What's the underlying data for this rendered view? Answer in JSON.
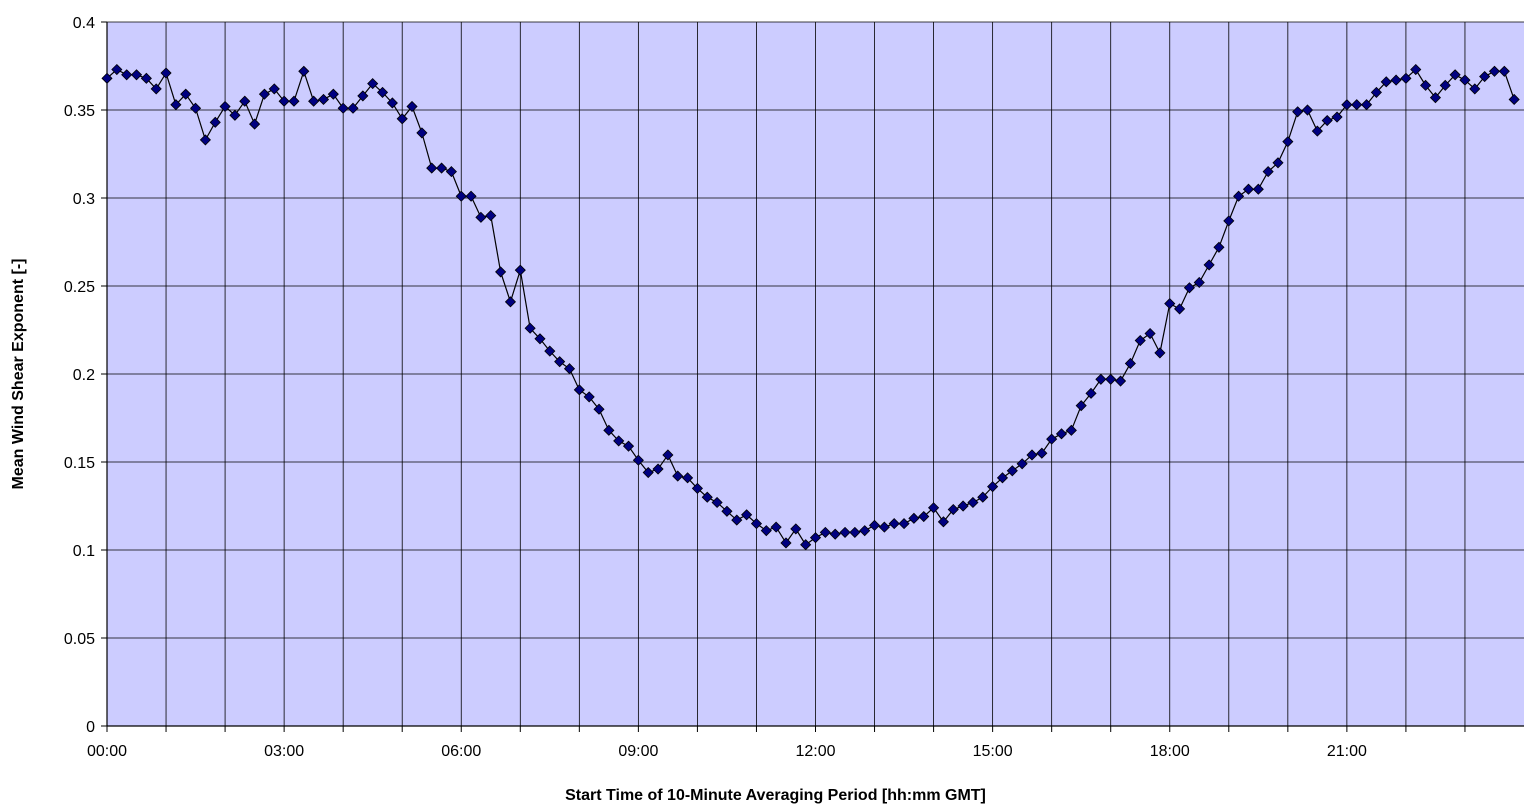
{
  "chart_data": {
    "type": "line",
    "xlabel": "Start Time of 10-Minute Averaging Period [hh:mm GMT]",
    "ylabel": "Mean Wind Shear Exponent [-]",
    "x_unit": "minutes since 00:00 GMT",
    "xlim": [
      0,
      1440
    ],
    "ylim": [
      0,
      0.4
    ],
    "x_ticks": [
      {
        "label": "00:00"
      },
      {
        "label": "03:00"
      },
      {
        "label": "06:00"
      },
      {
        "label": "09:00"
      },
      {
        "label": "12:00"
      },
      {
        "label": "15:00"
      },
      {
        "label": "18:00"
      },
      {
        "label": "21:00"
      }
    ],
    "y_ticks": [
      "0",
      "0.05",
      "0.1",
      "0.15",
      "0.2",
      "0.25",
      "0.3",
      "0.35",
      "0.4"
    ],
    "grid": true,
    "plot_background": "#ccccff",
    "series_color": "#000080",
    "series": [
      {
        "marker": "diamond",
        "x": [
          0,
          10,
          20,
          30,
          40,
          50,
          60,
          70,
          80,
          90,
          100,
          110,
          120,
          130,
          140,
          150,
          160,
          170,
          180,
          190,
          200,
          210,
          220,
          230,
          240,
          250,
          260,
          270,
          280,
          290,
          300,
          310,
          320,
          330,
          340,
          350,
          360,
          370,
          380,
          390,
          400,
          410,
          420,
          430,
          440,
          450,
          460,
          470,
          480,
          490,
          500,
          510,
          520,
          530,
          540,
          550,
          560,
          570,
          580,
          590,
          600,
          610,
          620,
          630,
          640,
          650,
          660,
          670,
          680,
          690,
          700,
          710,
          720,
          730,
          740,
          750,
          760,
          770,
          780,
          790,
          800,
          810,
          820,
          830,
          840,
          850,
          860,
          870,
          880,
          890,
          900,
          910,
          920,
          930,
          940,
          950,
          960,
          970,
          980,
          990,
          1000,
          1010,
          1020,
          1030,
          1040,
          1050,
          1060,
          1070,
          1080,
          1090,
          1100,
          1110,
          1120,
          1130,
          1140,
          1150,
          1160,
          1170,
          1180,
          1190,
          1200,
          1210,
          1220,
          1230,
          1240,
          1250,
          1260,
          1270,
          1280,
          1290,
          1300,
          1310,
          1320,
          1330,
          1340,
          1350,
          1360,
          1370,
          1380,
          1390,
          1400,
          1410,
          1420,
          1430
        ],
        "values": [
          0.368,
          0.373,
          0.37,
          0.37,
          0.368,
          0.362,
          0.371,
          0.353,
          0.359,
          0.351,
          0.333,
          0.343,
          0.352,
          0.347,
          0.355,
          0.342,
          0.359,
          0.362,
          0.355,
          0.355,
          0.372,
          0.355,
          0.356,
          0.359,
          0.351,
          0.351,
          0.358,
          0.365,
          0.36,
          0.354,
          0.345,
          0.352,
          0.337,
          0.317,
          0.317,
          0.315,
          0.301,
          0.301,
          0.289,
          0.29,
          0.258,
          0.241,
          0.259,
          0.226,
          0.22,
          0.213,
          0.207,
          0.203,
          0.191,
          0.187,
          0.18,
          0.168,
          0.162,
          0.159,
          0.151,
          0.144,
          0.146,
          0.154,
          0.142,
          0.141,
          0.135,
          0.13,
          0.127,
          0.122,
          0.117,
          0.12,
          0.115,
          0.111,
          0.113,
          0.104,
          0.112,
          0.103,
          0.107,
          0.11,
          0.109,
          0.11,
          0.11,
          0.111,
          0.114,
          0.113,
          0.115,
          0.115,
          0.118,
          0.119,
          0.124,
          0.116,
          0.123,
          0.125,
          0.127,
          0.13,
          0.136,
          0.141,
          0.145,
          0.149,
          0.154,
          0.155,
          0.163,
          0.166,
          0.168,
          0.182,
          0.189,
          0.197,
          0.197,
          0.196,
          0.206,
          0.219,
          0.223,
          0.212,
          0.24,
          0.237,
          0.249,
          0.252,
          0.262,
          0.272,
          0.287,
          0.301,
          0.305,
          0.305,
          0.315,
          0.32,
          0.332,
          0.349,
          0.35,
          0.338,
          0.344,
          0.346,
          0.353,
          0.353,
          0.353,
          0.36,
          0.366,
          0.367,
          0.368,
          0.373,
          0.364,
          0.357,
          0.364,
          0.37,
          0.367,
          0.362,
          0.369,
          0.372,
          0.372,
          0.356
        ]
      }
    ]
  }
}
